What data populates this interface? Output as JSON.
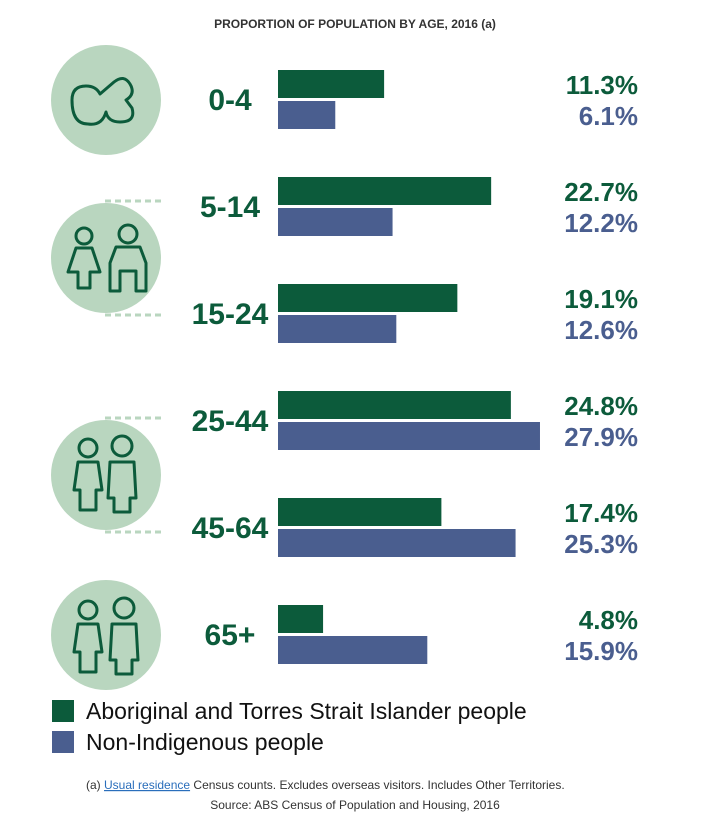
{
  "chart_data": {
    "type": "bar",
    "orientation": "horizontal",
    "title": "PROPORTION OF POPULATION BY AGE, 2016 (a)",
    "categories": [
      "0-4",
      "5-14",
      "15-24",
      "25-44",
      "45-64",
      "65+"
    ],
    "series": [
      {
        "name": "Aboriginal and Torres Strait Islander people",
        "color": "#0c5b3b",
        "values": [
          11.3,
          22.7,
          19.1,
          24.8,
          17.4,
          4.8
        ],
        "value_labels": [
          "11.3%",
          "22.7%",
          "19.1%",
          "24.8%",
          "17.4%",
          "4.8%"
        ]
      },
      {
        "name": "Non-Indigenous people",
        "color": "#4a5e8f",
        "values": [
          6.1,
          12.2,
          12.6,
          27.9,
          25.3,
          15.9
        ],
        "value_labels": [
          "6.1%",
          "12.2%",
          "12.6%",
          "27.9%",
          "25.3%",
          "15.9%"
        ]
      }
    ],
    "footnote": {
      "prefix": "(a)",
      "link": "Usual residence",
      "text": "Census counts. Excludes overseas visitors. Includes Other Territories."
    },
    "source": "Source: ABS Census of Population and Housing, 2016"
  }
}
